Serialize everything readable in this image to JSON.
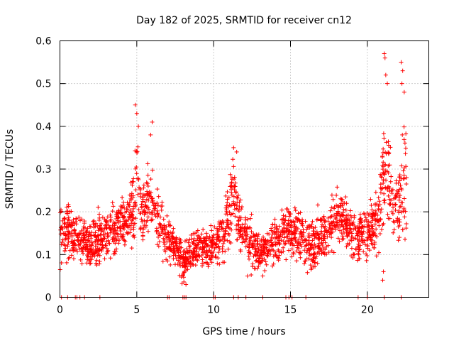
{
  "chart_data": {
    "type": "scatter",
    "title": "Day 182 of 2025, SRMTID for receiver cn12",
    "xlabel": "GPS time / hours",
    "ylabel": "SRMTID / TECUs",
    "xlim": [
      0,
      24
    ],
    "ylim": [
      0,
      0.6
    ],
    "x_ticks": [
      0,
      5,
      10,
      15,
      20
    ],
    "x_tick_labels": [
      "0",
      "5",
      "10",
      "15",
      "20"
    ],
    "y_ticks": [
      0,
      0.1,
      0.2,
      0.3,
      0.4,
      0.5,
      0.6
    ],
    "y_tick_labels": [
      "0",
      "0.1",
      "0.2",
      "0.3",
      "0.4",
      "0.5",
      "0.6"
    ],
    "grid": true,
    "marker": "plus",
    "series_color": "#ff0000",
    "envelope": {
      "x": [
        0,
        0.5,
        1.0,
        1.5,
        2.0,
        2.5,
        3.0,
        3.5,
        4.0,
        4.5,
        4.8,
        5.0,
        5.3,
        5.8,
        6.0,
        6.5,
        7.0,
        7.5,
        8.0,
        8.5,
        9.0,
        9.5,
        10.0,
        10.5,
        11.0,
        11.3,
        11.6,
        12.0,
        12.5,
        13.0,
        13.5,
        14.0,
        14.5,
        15.0,
        15.5,
        16.0,
        16.5,
        17.0,
        17.5,
        18.0,
        18.5,
        19.0,
        19.5,
        20.0,
        20.5,
        20.8,
        21.0,
        21.3,
        21.6,
        22.0,
        22.3,
        22.6
      ],
      "center": [
        0.14,
        0.15,
        0.14,
        0.13,
        0.12,
        0.13,
        0.14,
        0.16,
        0.17,
        0.18,
        0.22,
        0.3,
        0.2,
        0.24,
        0.22,
        0.17,
        0.13,
        0.12,
        0.08,
        0.11,
        0.12,
        0.11,
        0.12,
        0.14,
        0.18,
        0.27,
        0.2,
        0.14,
        0.12,
        0.11,
        0.12,
        0.13,
        0.14,
        0.16,
        0.15,
        0.13,
        0.12,
        0.14,
        0.15,
        0.19,
        0.18,
        0.15,
        0.14,
        0.16,
        0.17,
        0.2,
        0.27,
        0.3,
        0.22,
        0.19,
        0.28,
        0.25
      ],
      "spread": [
        0.05,
        0.04,
        0.04,
        0.04,
        0.04,
        0.04,
        0.04,
        0.04,
        0.04,
        0.04,
        0.06,
        0.07,
        0.05,
        0.06,
        0.05,
        0.04,
        0.04,
        0.03,
        0.03,
        0.03,
        0.03,
        0.03,
        0.03,
        0.04,
        0.05,
        0.06,
        0.05,
        0.04,
        0.04,
        0.03,
        0.03,
        0.03,
        0.04,
        0.04,
        0.04,
        0.04,
        0.04,
        0.04,
        0.04,
        0.04,
        0.04,
        0.04,
        0.04,
        0.04,
        0.05,
        0.06,
        0.08,
        0.1,
        0.06,
        0.05,
        0.1,
        0.07
      ]
    },
    "peaks": [
      {
        "x": 4.9,
        "y": 0.45
      },
      {
        "x": 5.0,
        "y": 0.43
      },
      {
        "x": 5.1,
        "y": 0.4
      },
      {
        "x": 6.0,
        "y": 0.41
      },
      {
        "x": 5.9,
        "y": 0.38
      },
      {
        "x": 11.3,
        "y": 0.35
      },
      {
        "x": 11.5,
        "y": 0.34
      },
      {
        "x": 21.1,
        "y": 0.57
      },
      {
        "x": 21.15,
        "y": 0.56
      },
      {
        "x": 21.2,
        "y": 0.52
      },
      {
        "x": 21.3,
        "y": 0.5
      },
      {
        "x": 22.2,
        "y": 0.55
      },
      {
        "x": 22.3,
        "y": 0.53
      },
      {
        "x": 22.25,
        "y": 0.5
      },
      {
        "x": 22.4,
        "y": 0.48
      },
      {
        "x": 21.0,
        "y": 0.04
      },
      {
        "x": 21.05,
        "y": 0.06
      },
      {
        "x": 8.2,
        "y": 0.03
      },
      {
        "x": 13.2,
        "y": 0.05
      }
    ],
    "zero_points_x": [
      0.1,
      0.5,
      1.0,
      1.1,
      1.3,
      1.6,
      2.6,
      7.0,
      7.1,
      8.0,
      8.1,
      8.2,
      10.0,
      10.1,
      11.3,
      11.6,
      12.1,
      13.2,
      14.7,
      14.9,
      15.1,
      16.0,
      19.4,
      20.0,
      21.1,
      22.2
    ]
  }
}
